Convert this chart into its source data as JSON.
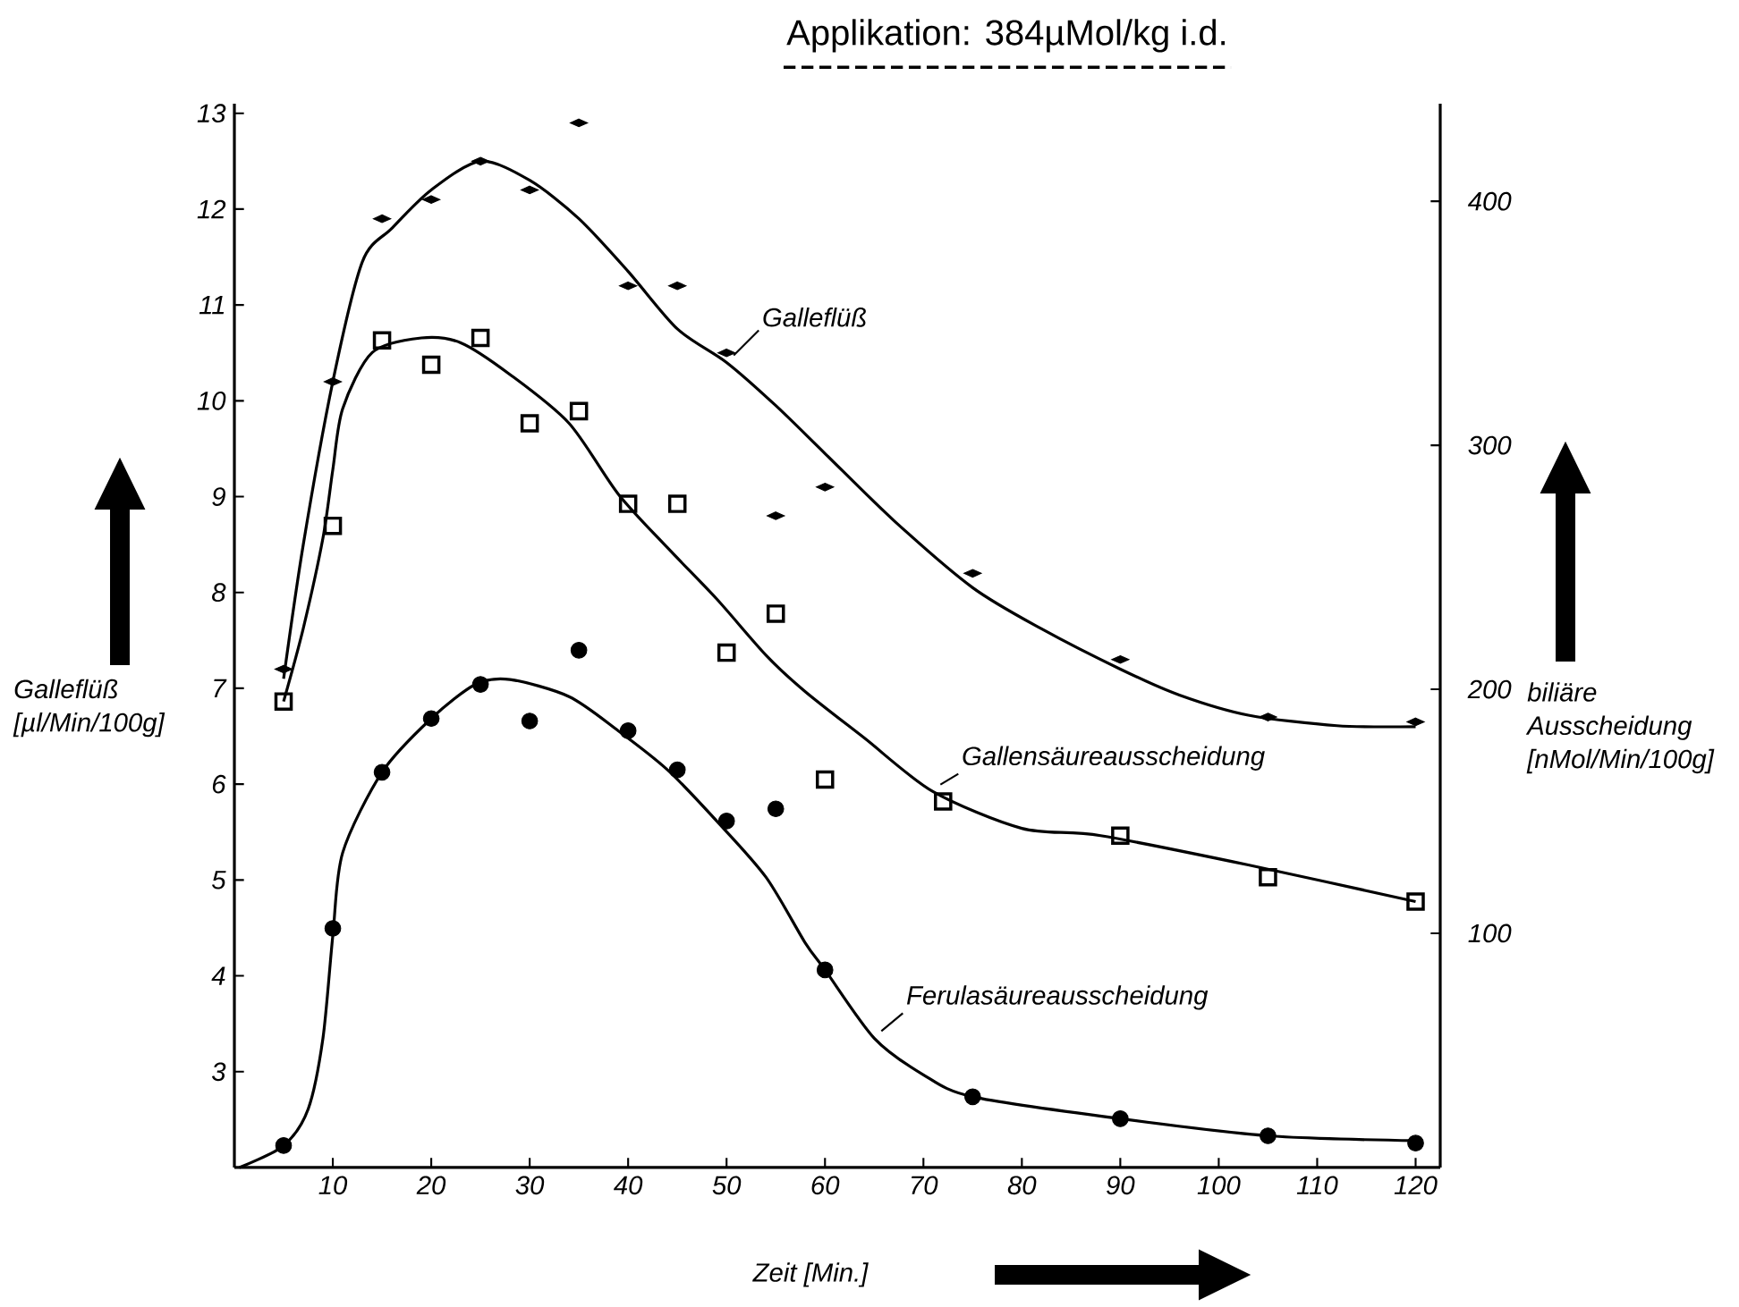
{
  "chart_data": {
    "type": "scatter",
    "title": "Applikation: 384µMol/kg  i.d.",
    "xlabel": "Zeit [Min.]",
    "ylabel": "Galleflüß [µl/Min/100g]",
    "y2label": "biliäre Ausscheidung [nMol/Min/100g]",
    "xlim": [
      0,
      122.5
    ],
    "ylim": [
      2,
      13.1
    ],
    "y2lim": [
      4,
      440
    ],
    "xticks": [
      10,
      20,
      30,
      40,
      50,
      60,
      70,
      80,
      90,
      100,
      110,
      120
    ],
    "yticks": [
      3,
      4,
      5,
      6,
      7,
      8,
      9,
      10,
      11,
      12,
      13
    ],
    "y2ticks": [
      100,
      200,
      300,
      400
    ],
    "series": [
      {
        "type": "line",
        "name": "Galleflüß",
        "color": "#000000",
        "line_style": "solid",
        "marker": "none",
        "x": [
          5,
          7,
          10,
          13,
          16,
          20,
          25,
          30,
          35,
          40,
          45,
          50,
          55,
          60,
          67,
          75,
          82,
          90,
          96,
          103,
          112,
          120
        ],
        "values": [
          7.1,
          8.5,
          10.2,
          11.45,
          11.8,
          12.2,
          12.5,
          12.3,
          11.9,
          11.35,
          10.75,
          10.4,
          9.95,
          9.45,
          8.75,
          8.05,
          7.62,
          7.2,
          6.93,
          6.72,
          6.61,
          6.6
        ]
      },
      {
        "color": "#000000",
        "marker": "diamond",
        "x": [
          5,
          10,
          15,
          20,
          25,
          30,
          35,
          40,
          45,
          50,
          55,
          60,
          75,
          90,
          105,
          120
        ],
        "values": [
          7.2,
          10.2,
          11.9,
          12.1,
          12.5,
          12.2,
          12.9,
          11.2,
          11.2,
          10.5,
          8.8,
          9.1,
          8.2,
          7.3,
          6.7,
          6.65
        ]
      },
      {
        "type": "line",
        "name": "Gallensäureausscheidung",
        "axis": "y2",
        "color": "#000000",
        "line_style": "solid",
        "marker": "none",
        "x": [
          5,
          7,
          9,
          10,
          11,
          14,
          19,
          23,
          28,
          34,
          39,
          44,
          49,
          54,
          58,
          64,
          71,
          80,
          88,
          103,
          120
        ],
        "values": [
          195,
          225,
          262,
          290,
          315,
          338,
          344,
          342,
          329,
          309,
          280,
          258,
          237,
          214,
          199,
          180,
          158,
          143,
          140,
          128,
          113
        ]
      },
      {
        "axis": "y2",
        "color": "#000000",
        "marker": "square",
        "x": [
          5,
          10,
          15,
          20,
          25,
          30,
          35,
          40,
          45,
          50,
          55,
          60,
          72,
          90,
          105,
          120
        ],
        "values": [
          195,
          267,
          343,
          333,
          344,
          309,
          314,
          276,
          276,
          215,
          231,
          163,
          154,
          140,
          123,
          113
        ]
      },
      {
        "type": "line",
        "name": "Ferulasäureausscheidung",
        "axis": "y2",
        "color": "#000000",
        "line_style": "solid",
        "marker": "none",
        "x": [
          0.5,
          5,
          7.5,
          9,
          10,
          11,
          15,
          20,
          24.5,
          28,
          34,
          39,
          44,
          49,
          54,
          58,
          60,
          65,
          70,
          75,
          90,
          105,
          120
        ],
        "values": [
          4,
          13,
          28,
          57,
          99,
          133,
          166,
          188,
          202,
          204,
          197,
          183,
          167,
          146,
          123,
          96,
          85,
          57,
          42,
          33,
          24,
          17,
          15
        ]
      },
      {
        "axis": "y2",
        "color": "#000000",
        "marker": "circle",
        "x": [
          5,
          10,
          15,
          20,
          25,
          30,
          35,
          40,
          45,
          50,
          55,
          60,
          75,
          90,
          105,
          120
        ],
        "values": [
          13,
          102,
          166,
          188,
          202,
          187,
          216,
          183,
          167,
          146,
          151,
          85,
          33,
          24,
          17,
          14
        ]
      }
    ]
  }
}
